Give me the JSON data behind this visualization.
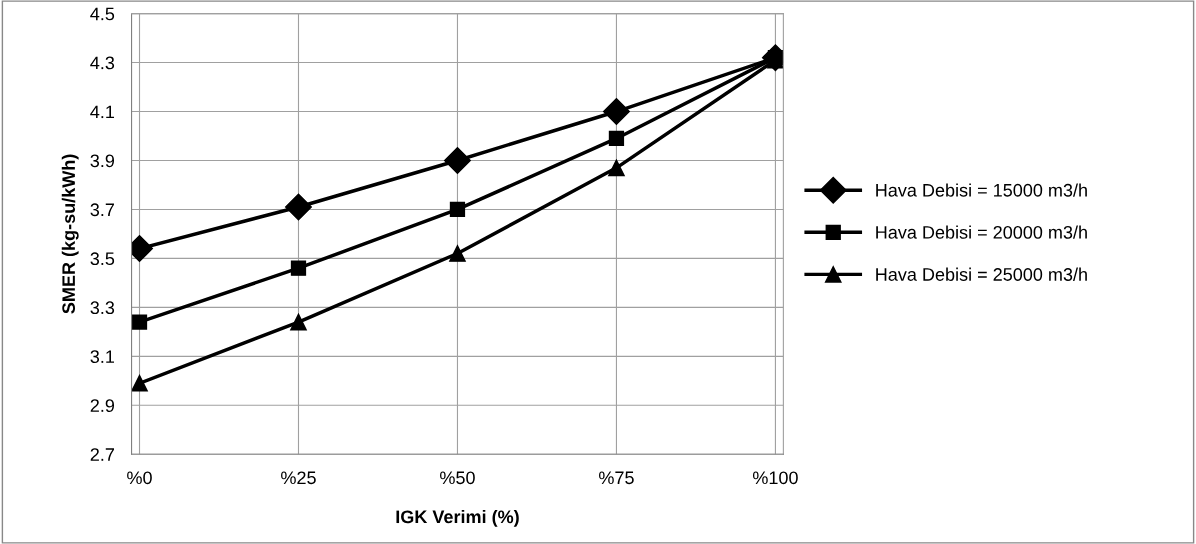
{
  "chart_data": {
    "type": "line",
    "xlabel": "IGK Verimi (%)",
    "ylabel": "SMER (kg-su/kWh)",
    "categories": [
      "%0",
      "%25",
      "%50",
      "%75",
      "%100"
    ],
    "series": [
      {
        "name": "Hava Debisi = 15000 m3/h",
        "color": "#000000",
        "marker": "diamond",
        "values": [
          3.54,
          3.71,
          3.9,
          4.1,
          4.32
        ]
      },
      {
        "name": "Hava Debisi = 20000 m3/h",
        "color": "#000000",
        "marker": "square",
        "values": [
          3.24,
          3.46,
          3.7,
          3.99,
          4.32
        ]
      },
      {
        "name": "Hava Debisi = 25000 m3/h",
        "color": "#000000",
        "marker": "triangle",
        "values": [
          2.99,
          3.24,
          3.52,
          3.87,
          4.31
        ]
      }
    ],
    "ylim": [
      2.7,
      4.5
    ],
    "yticks": [
      2.7,
      2.9,
      3.1,
      3.3,
      3.5,
      3.7,
      3.9,
      4.1,
      4.3,
      4.5
    ],
    "grid": true,
    "legend": "right",
    "line_style": "solid"
  }
}
